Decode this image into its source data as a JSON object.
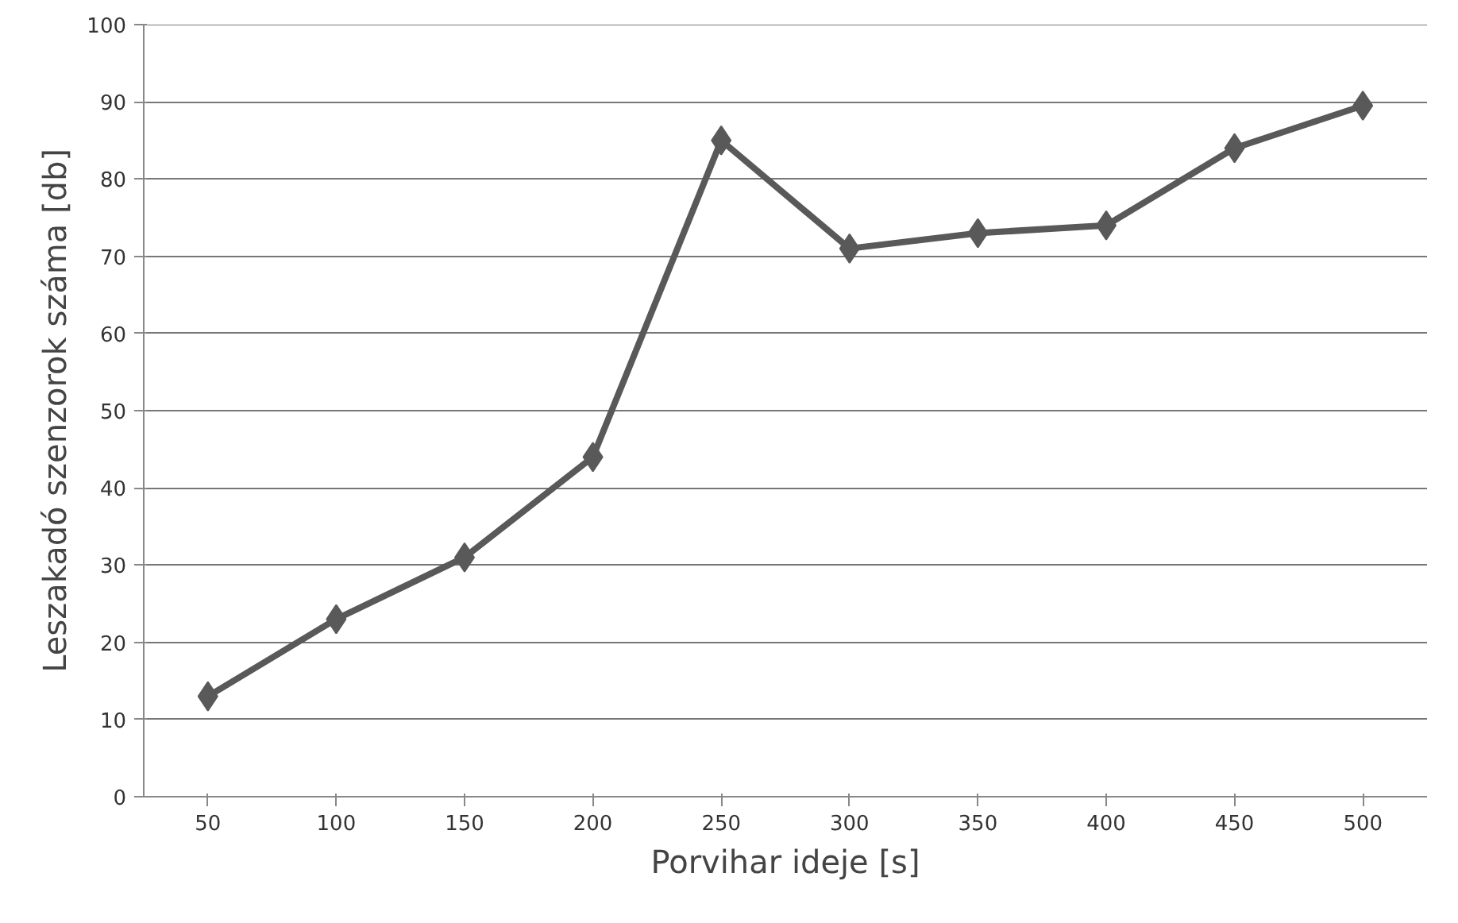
{
  "chart_data": {
    "type": "line",
    "xlabel": "Porvihar ideje [s]",
    "ylabel": "Leszakadó szenzorok száma [db]",
    "categories": [
      "50",
      "100",
      "150",
      "200",
      "250",
      "300",
      "350",
      "400",
      "450",
      "500"
    ],
    "series": [
      {
        "color": "#595959",
        "values": [
          13,
          23,
          31,
          44,
          85,
          71,
          73,
          74,
          84,
          89.5
        ]
      }
    ],
    "ylim": [
      0,
      100
    ],
    "yticks": [
      0,
      10,
      20,
      30,
      40,
      50,
      60,
      70,
      80,
      90,
      100
    ],
    "grid": "y",
    "marker": "diamond",
    "line_style": "solid"
  }
}
